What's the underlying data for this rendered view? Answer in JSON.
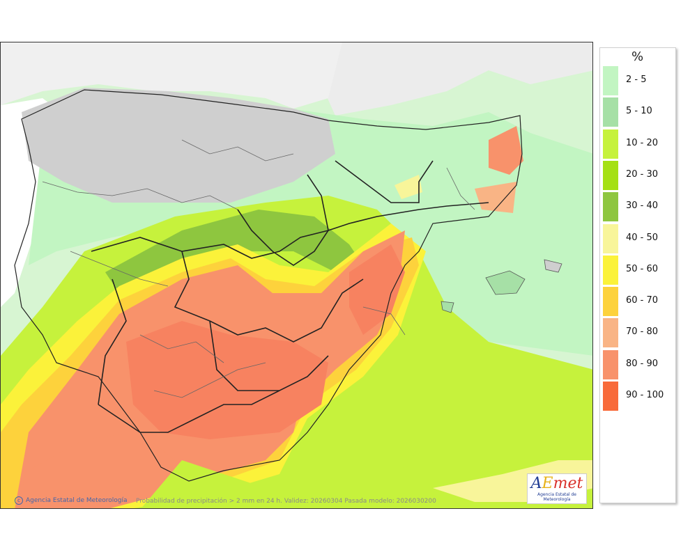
{
  "map": {
    "caption": "Probabilidad de precipitación > 2 mm en 24 h. Validez: 20260304 Pasada modelo: 2026030200",
    "credit": "Agencia Estatal de Meteorología",
    "logo": {
      "a": "A",
      "e": "E",
      "m": "met",
      "sub": "Agencia Estatal de Meteorología"
    }
  },
  "legend": {
    "unit": "%",
    "entries": [
      {
        "label": "2 - 5",
        "color": "#c2f5c2"
      },
      {
        "label": "5 - 10",
        "color": "#a6e0a6"
      },
      {
        "label": "10 - 20",
        "color": "#c6f23c"
      },
      {
        "label": "20 - 30",
        "color": "#a5e014"
      },
      {
        "label": "30 - 40",
        "color": "#8ec63f"
      },
      {
        "label": "40 - 50",
        "color": "#f8f59a"
      },
      {
        "label": "50 - 60",
        "color": "#fbf23a"
      },
      {
        "label": "60 - 70",
        "color": "#fdd23c"
      },
      {
        "label": "70 - 80",
        "color": "#f9b485"
      },
      {
        "label": "80 - 90",
        "color": "#f8926b"
      },
      {
        "label": "90 - 100",
        "color": "#f86a3a"
      }
    ]
  }
}
